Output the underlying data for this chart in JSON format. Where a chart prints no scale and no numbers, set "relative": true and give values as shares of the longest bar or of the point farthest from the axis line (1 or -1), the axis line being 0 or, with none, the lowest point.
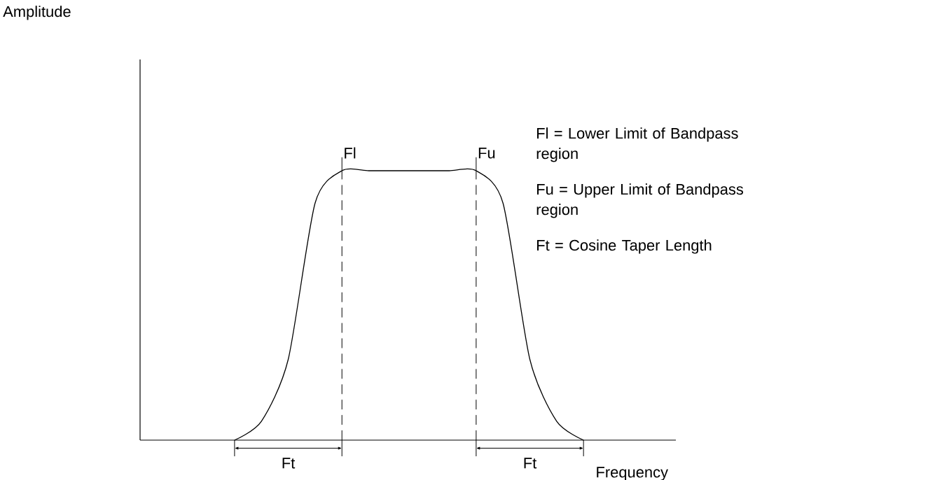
{
  "chart_data": {
    "type": "line",
    "relative": true,
    "xlabel": "Frequency",
    "categories": [
      null,
      null,
      null,
      null,
      null,
      null,
      null,
      null,
      null,
      null,
      null,
      null,
      null,
      null,
      null,
      null,
      null,
      null,
      null,
      null
    ],
    "series": [
      {
        "color": "#000000",
        "values": [
          null,
          null,
          null,
          0,
          0.07,
          0.3,
          0.88,
          1,
          1,
          1,
          1,
          1,
          1,
          0.88,
          0.3,
          0.07,
          0,
          null,
          null,
          null
        ]
      }
    ],
    "annotations": [
      "Fl",
      "Fu",
      "Ft",
      "Ft",
      "Fl = Lower Limit of Bandpass region",
      "Fu = Upper Limit of Bandpass region",
      "Ft = Cosine Taper Length",
      "Amplitude"
    ]
  }
}
